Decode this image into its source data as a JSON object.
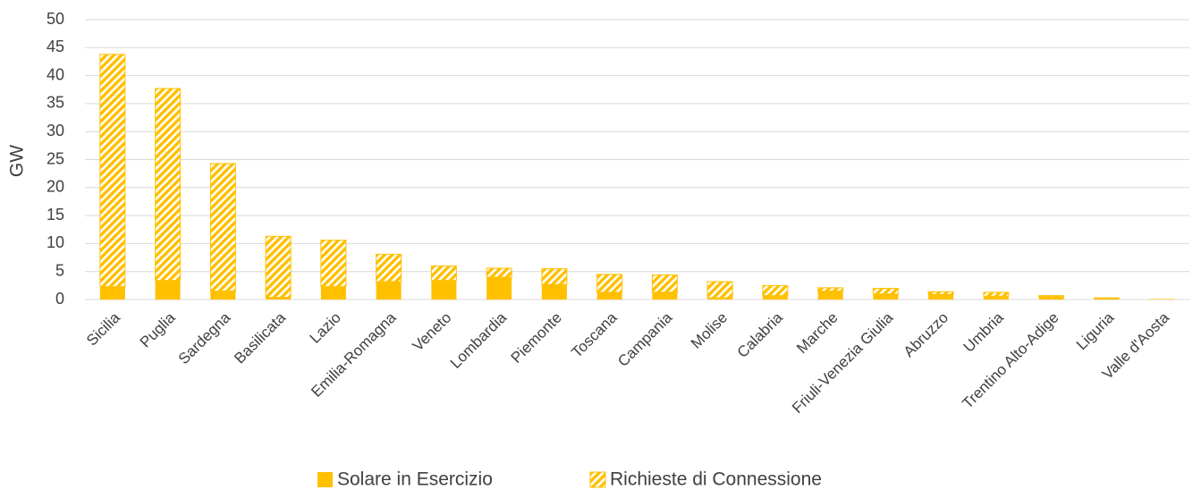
{
  "chart_data": {
    "type": "stacked_bar",
    "y_label": "GW",
    "categories": [
      "Sicilia",
      "Puglia",
      "Sardegna",
      "Basilicata",
      "Lazio",
      "Emilia-Romagna",
      "Veneto",
      "Lombardia",
      "Piemonte",
      "Toscana",
      "Campania",
      "Molise",
      "Calabria",
      "Marche",
      "Friuli-Venezia Giulia",
      "Abruzzo",
      "Umbria",
      "Trentino Alto-Adige",
      "Liguria",
      "Valle d'Aosta"
    ],
    "series": [
      {
        "name": "Solare in Esercizio",
        "color": "#ffc000",
        "pattern": "solid",
        "values": [
          2.3,
          3.4,
          1.5,
          0.4,
          2.3,
          3.2,
          3.4,
          4.0,
          2.7,
          1.3,
          1.3,
          0.3,
          0.7,
          1.5,
          1.0,
          0.9,
          0.6,
          0.5,
          0.2,
          0.1
        ]
      },
      {
        "name": "Richieste di Connessione",
        "color": "#ffc000",
        "pattern": "hatched",
        "values": [
          41.5,
          34.3,
          22.8,
          10.9,
          8.3,
          4.9,
          2.6,
          1.6,
          2.8,
          3.2,
          3.1,
          2.9,
          1.8,
          0.6,
          1.0,
          0.5,
          0.7,
          0.2,
          0.1,
          0.0
        ]
      }
    ],
    "ylim": [
      0,
      50
    ],
    "yticks": [
      0,
      5,
      10,
      15,
      20,
      25,
      30,
      35,
      40,
      45,
      50
    ],
    "grid": true,
    "legend": "bottom"
  }
}
